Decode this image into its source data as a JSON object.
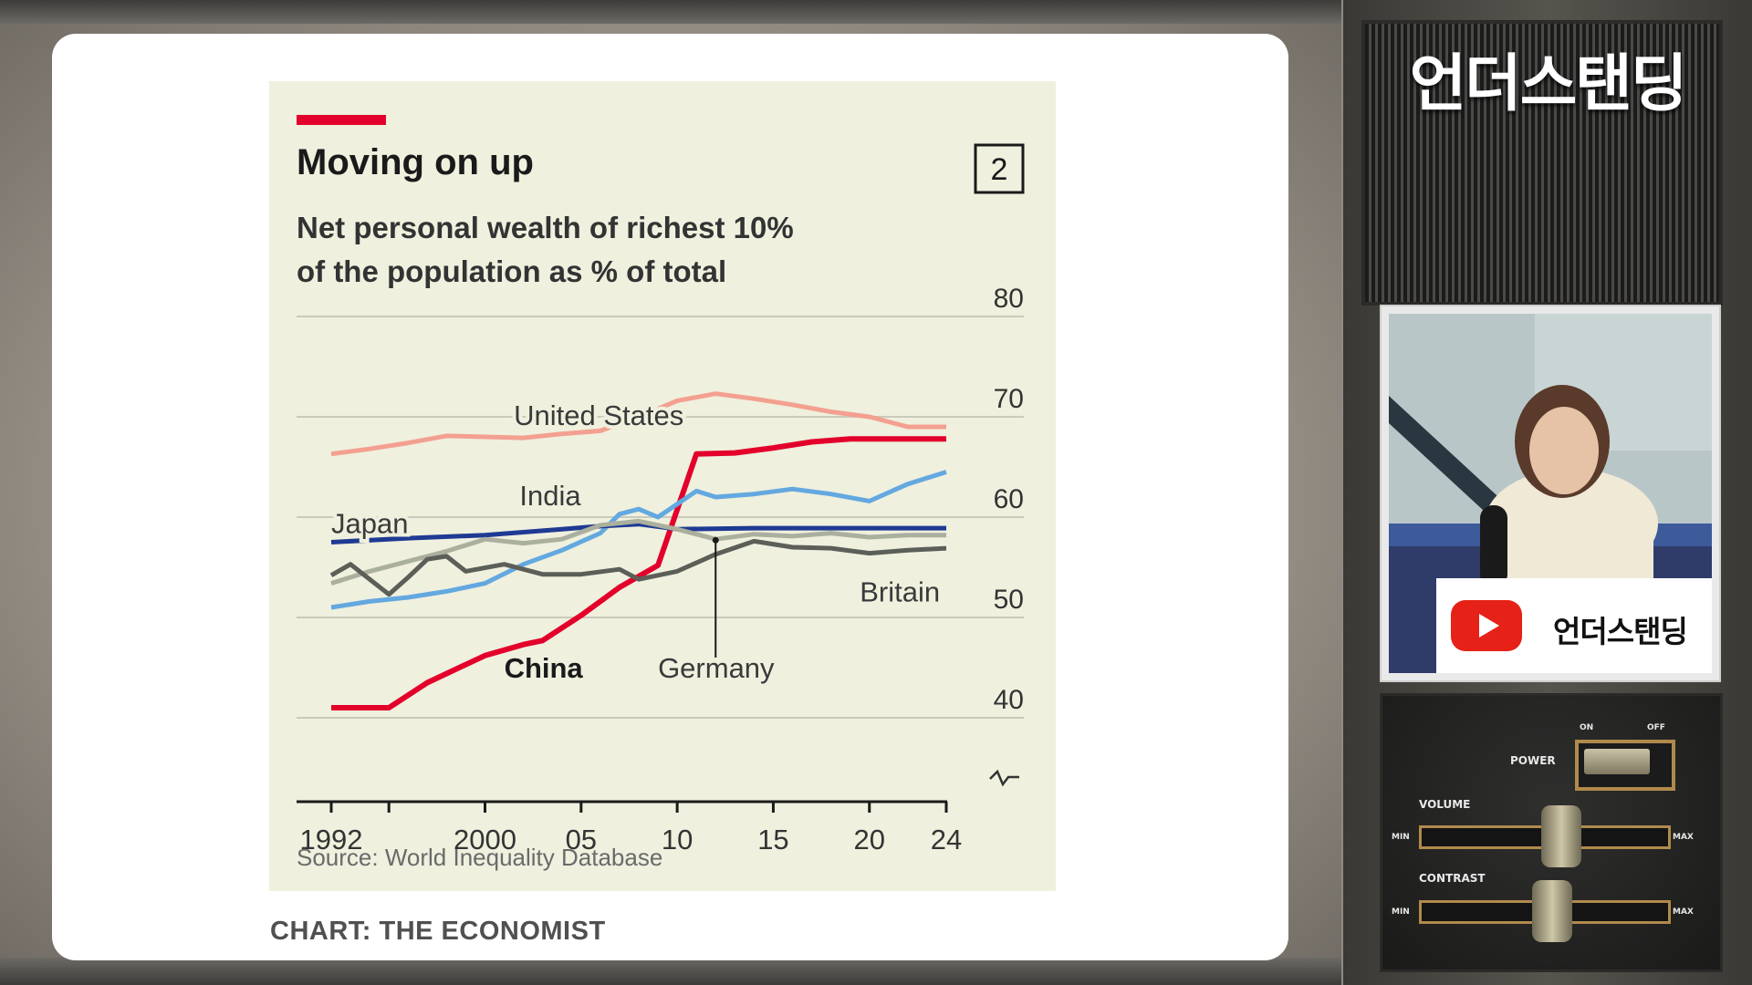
{
  "chart_panel": {
    "title": "Moving on up",
    "subtitle_line1": "Net personal wealth of richest 10%",
    "subtitle_line2": "of the population as % of total",
    "chart_number": "2",
    "source": "Source: World Inequality Database",
    "credit": "CHART: THE ECONOMIST"
  },
  "chart_data": {
    "type": "line",
    "title": "Moving on up",
    "subtitle": "Net personal wealth of richest 10% of the population as % of total",
    "ylim": [
      40,
      80
    ],
    "y_ticks": [
      {
        "value": 40,
        "label": "40"
      },
      {
        "value": 50,
        "label": "50"
      },
      {
        "value": 60,
        "label": "60"
      },
      {
        "value": 70,
        "label": "70"
      },
      {
        "value": 80,
        "label": "80"
      }
    ],
    "xlim": [
      1992,
      2024
    ],
    "x_ticks": [
      {
        "value": 1992,
        "label": "1992"
      },
      {
        "value": 2000,
        "label": "2000"
      },
      {
        "value": 2005,
        "label": "05"
      },
      {
        "value": 2010,
        "label": "10"
      },
      {
        "value": 2015,
        "label": "15"
      },
      {
        "value": 2020,
        "label": "20"
      },
      {
        "value": 2024,
        "label": "24"
      }
    ],
    "x_minor_ticks": [
      1995
    ],
    "axis_break": true,
    "grid": "horizontal",
    "series": [
      {
        "name": "United States",
        "color": "#f4a090",
        "width": 5,
        "bold": false,
        "label": {
          "text": "United States",
          "x": 2001.5,
          "y": 69.2
        },
        "points": [
          [
            1992,
            66.3
          ],
          [
            1994,
            66.8
          ],
          [
            1996,
            67.4
          ],
          [
            1998,
            68.1
          ],
          [
            2000,
            68.0
          ],
          [
            2002,
            67.9
          ],
          [
            2004,
            68.3
          ],
          [
            2006,
            68.6
          ],
          [
            2008,
            70.0
          ],
          [
            2010,
            71.6
          ],
          [
            2012,
            72.3
          ],
          [
            2014,
            71.8
          ],
          [
            2016,
            71.2
          ],
          [
            2018,
            70.5
          ],
          [
            2020,
            70.0
          ],
          [
            2022,
            69.0
          ],
          [
            2024,
            69.0
          ]
        ]
      },
      {
        "name": "China",
        "color": "#e3002b",
        "width": 6,
        "bold": true,
        "label": {
          "text": "China",
          "x": 2001.0,
          "y": 44.0
        },
        "points": [
          [
            1992,
            41.0
          ],
          [
            1995,
            41.0
          ],
          [
            1997,
            43.5
          ],
          [
            1999,
            45.3
          ],
          [
            2000,
            46.2
          ],
          [
            2002,
            47.3
          ],
          [
            2003,
            47.7
          ],
          [
            2005,
            50.2
          ],
          [
            2007,
            53.0
          ],
          [
            2009,
            55.2
          ],
          [
            2011,
            66.3
          ],
          [
            2013,
            66.4
          ],
          [
            2015,
            66.9
          ],
          [
            2017,
            67.5
          ],
          [
            2019,
            67.8
          ],
          [
            2021,
            67.8
          ],
          [
            2024,
            67.8
          ]
        ]
      },
      {
        "name": "India",
        "color": "#64a8e0",
        "width": 5,
        "bold": false,
        "label": {
          "text": "India",
          "x": 2001.8,
          "y": 61.2
        },
        "points": [
          [
            1992,
            51.0
          ],
          [
            1994,
            51.6
          ],
          [
            1996,
            52.0
          ],
          [
            1998,
            52.6
          ],
          [
            2000,
            53.4
          ],
          [
            2002,
            55.3
          ],
          [
            2004,
            56.7
          ],
          [
            2006,
            58.4
          ],
          [
            2007,
            60.3
          ],
          [
            2008,
            60.8
          ],
          [
            2009,
            60.0
          ],
          [
            2011,
            62.6
          ],
          [
            2012,
            62.0
          ],
          [
            2014,
            62.3
          ],
          [
            2016,
            62.8
          ],
          [
            2018,
            62.3
          ],
          [
            2020,
            61.6
          ],
          [
            2022,
            63.3
          ],
          [
            2024,
            64.5
          ]
        ]
      },
      {
        "name": "Japan",
        "color": "#1f3a93",
        "width": 5,
        "bold": false,
        "label": {
          "text": "Japan",
          "x": 1992.0,
          "y": 58.4
        },
        "points": [
          [
            1992,
            57.5
          ],
          [
            1996,
            57.9
          ],
          [
            2000,
            58.2
          ],
          [
            2004,
            58.8
          ],
          [
            2006,
            59.1
          ],
          [
            2008,
            59.3
          ],
          [
            2010,
            58.8
          ],
          [
            2014,
            58.9
          ],
          [
            2018,
            58.9
          ],
          [
            2024,
            58.9
          ]
        ]
      },
      {
        "name": "Germany",
        "color": "#abaf9e",
        "width": 5,
        "bold": false,
        "label": {
          "text": "Germany",
          "x": 2009.0,
          "y": 44.0
        },
        "points": [
          [
            1992,
            53.4
          ],
          [
            1994,
            54.6
          ],
          [
            1996,
            55.6
          ],
          [
            1998,
            56.6
          ],
          [
            2000,
            57.8
          ],
          [
            2002,
            57.4
          ],
          [
            2004,
            57.8
          ],
          [
            2006,
            59.2
          ],
          [
            2008,
            59.6
          ],
          [
            2010,
            58.8
          ],
          [
            2012,
            57.8
          ],
          [
            2014,
            58.3
          ],
          [
            2016,
            58.1
          ],
          [
            2018,
            58.4
          ],
          [
            2020,
            58.0
          ],
          [
            2022,
            58.2
          ],
          [
            2024,
            58.2
          ]
        ]
      },
      {
        "name": "Britain",
        "color": "#5c5f58",
        "width": 5,
        "bold": false,
        "label": {
          "text": "Britain",
          "x": 2019.5,
          "y": 51.6
        },
        "points": [
          [
            1992,
            54.2
          ],
          [
            1993,
            55.3
          ],
          [
            1995,
            52.3
          ],
          [
            1996,
            54.0
          ],
          [
            1997,
            55.8
          ],
          [
            1998,
            56.1
          ],
          [
            1999,
            54.6
          ],
          [
            2001,
            55.3
          ],
          [
            2003,
            54.3
          ],
          [
            2005,
            54.3
          ],
          [
            2007,
            54.8
          ],
          [
            2008,
            53.8
          ],
          [
            2010,
            54.6
          ],
          [
            2012,
            56.3
          ],
          [
            2014,
            57.6
          ],
          [
            2016,
            57.0
          ],
          [
            2018,
            56.9
          ],
          [
            2020,
            56.4
          ],
          [
            2022,
            56.7
          ],
          [
            2024,
            56.9
          ]
        ]
      }
    ],
    "annotation": {
      "text": "Germany",
      "x": 2012.0,
      "y_from": 57.7,
      "y_to": 46.0
    }
  },
  "sidebar": {
    "brand_title": "언더스탠딩",
    "channel_name": "언더스탠딩",
    "controls": {
      "power": "POWER",
      "on": "ON",
      "off": "OFF",
      "volume": "VOLUME",
      "contrast": "CONTRAST",
      "min": "MIN",
      "max": "MAX"
    }
  }
}
